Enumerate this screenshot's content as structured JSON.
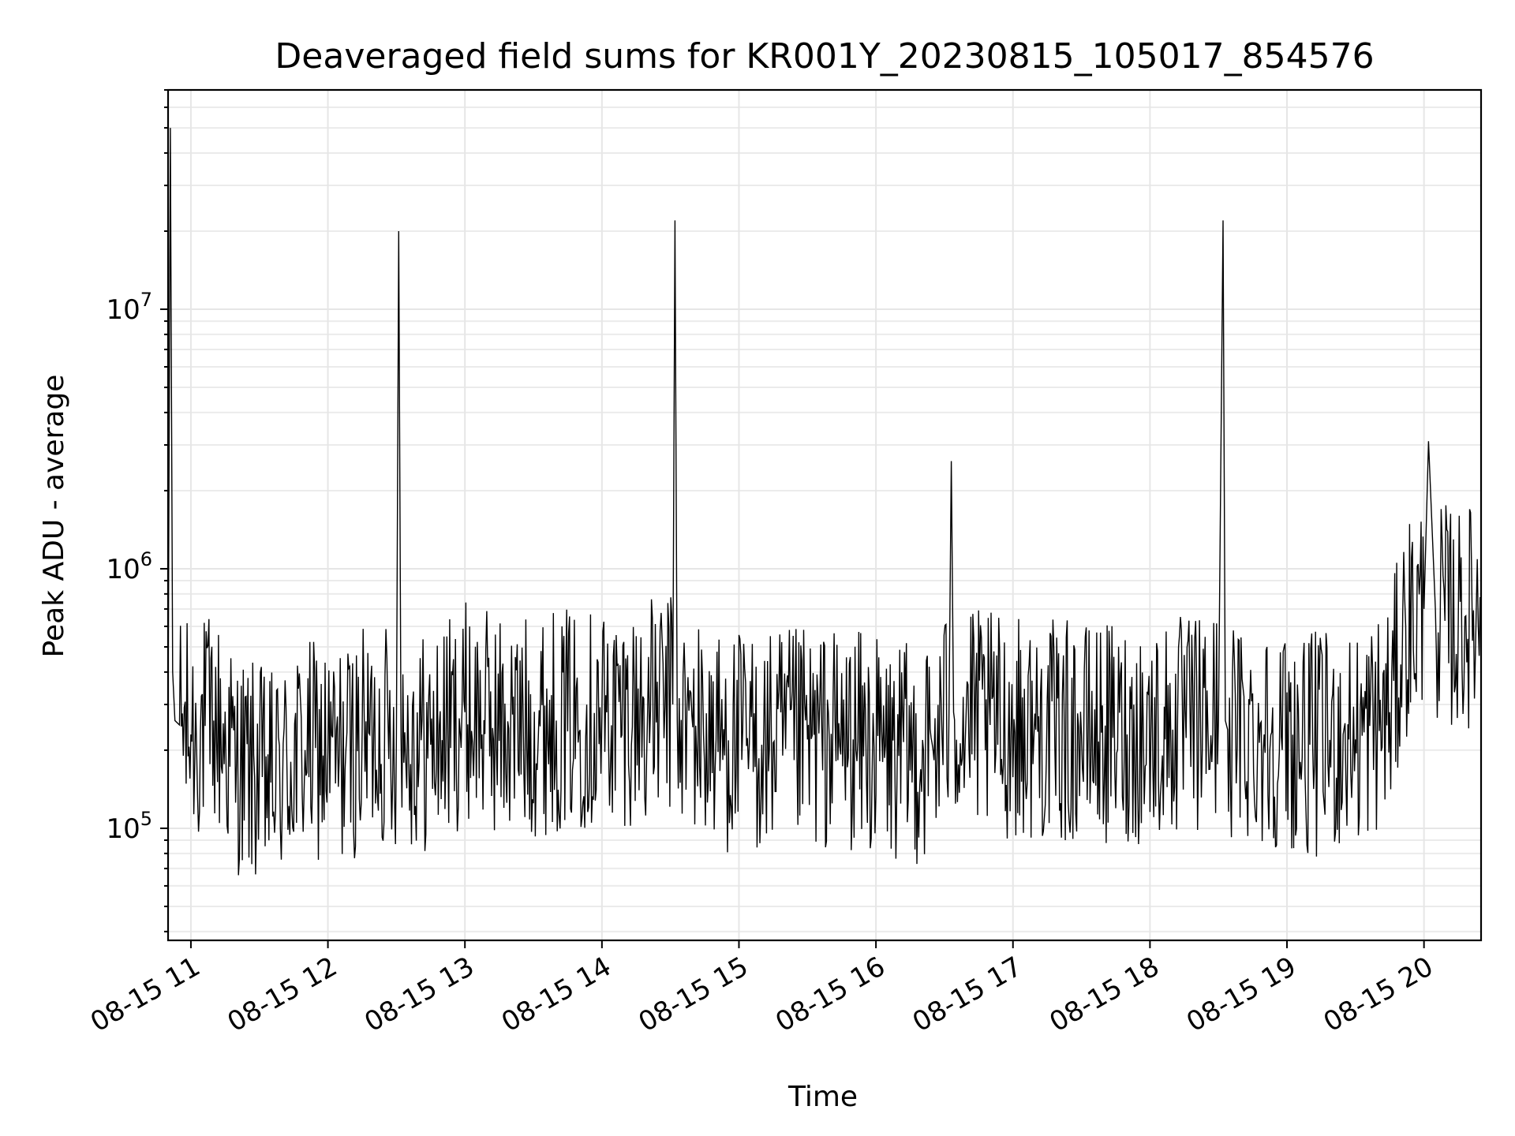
{
  "chart_data": {
    "type": "line",
    "title": "Deaveraged field sums for KR001Y_20230815_105017_854576",
    "xlabel": "Time",
    "ylabel": "Peak ADU - average",
    "yscale": "log",
    "xlim": [
      "2023-08-15 10:50",
      "2023-08-15 20:25"
    ],
    "ylim": [
      37000,
      70000000
    ],
    "grid": true,
    "x_tick_labels": [
      "08-15 11",
      "08-15 12",
      "08-15 13",
      "08-15 14",
      "08-15 15",
      "08-15 16",
      "08-15 17",
      "08-15 18",
      "08-15 19",
      "08-15 20"
    ],
    "x_ticks": [
      "2023-08-15 11:00",
      "2023-08-15 12:00",
      "2023-08-15 13:00",
      "2023-08-15 14:00",
      "2023-08-15 15:00",
      "2023-08-15 16:00",
      "2023-08-15 17:00",
      "2023-08-15 18:00",
      "2023-08-15 19:00",
      "2023-08-15 20:00"
    ],
    "y_ticks": [
      100000,
      1000000,
      10000000
    ],
    "y_tick_labels": [
      {
        "base": "10",
        "exp": "5"
      },
      {
        "base": "10",
        "exp": "6"
      },
      {
        "base": "10",
        "exp": "7"
      }
    ],
    "line_color": "#000000",
    "series": [
      {
        "values_note_free": true,
        "x": [
          "2023-08-15 10:50",
          "2023-08-15 10:51",
          "2023-08-15 10:52",
          "2023-08-15 10:53",
          "2023-08-15 10:55",
          "2023-08-15 11:00",
          "2023-08-15 11:10",
          "2023-08-15 11:20",
          "2023-08-15 11:35",
          "2023-08-15 11:50",
          "2023-08-15 12:05",
          "2023-08-15 12:20",
          "2023-08-15 12:30",
          "2023-08-15 12:31",
          "2023-08-15 12:32",
          "2023-08-15 12:45",
          "2023-08-15 13:00",
          "2023-08-15 13:20",
          "2023-08-15 13:40",
          "2023-08-15 14:00",
          "2023-08-15 14:20",
          "2023-08-15 14:31",
          "2023-08-15 14:32",
          "2023-08-15 14:33",
          "2023-08-15 14:50",
          "2023-08-15 15:10",
          "2023-08-15 15:30",
          "2023-08-15 15:50",
          "2023-08-15 16:10",
          "2023-08-15 16:25",
          "2023-08-15 16:32",
          "2023-08-15 16:33",
          "2023-08-15 16:34",
          "2023-08-15 16:50",
          "2023-08-15 17:10",
          "2023-08-15 17:30",
          "2023-08-15 17:50",
          "2023-08-15 18:10",
          "2023-08-15 18:30",
          "2023-08-15 18:32",
          "2023-08-15 18:33",
          "2023-08-15 18:34",
          "2023-08-15 18:50",
          "2023-08-15 19:10",
          "2023-08-15 19:30",
          "2023-08-15 19:45",
          "2023-08-15 19:52",
          "2023-08-15 20:00",
          "2023-08-15 20:02",
          "2023-08-15 20:05",
          "2023-08-15 20:15",
          "2023-08-15 20:25"
        ],
        "y": [
          270000,
          50000000,
          400000,
          260000,
          250000,
          230000,
          260000,
          180000,
          150000,
          200000,
          190000,
          230000,
          230000,
          20000000,
          230000,
          210000,
          280000,
          240000,
          260000,
          270000,
          280000,
          300000,
          22000000,
          260000,
          220000,
          210000,
          220000,
          220000,
          190000,
          200000,
          280000,
          2600000,
          280000,
          250000,
          240000,
          230000,
          230000,
          240000,
          260000,
          22000000,
          260000,
          240000,
          230000,
          210000,
          220000,
          280000,
          600000,
          700000,
          3100000,
          700000,
          620000,
          700000
        ]
      }
    ]
  }
}
